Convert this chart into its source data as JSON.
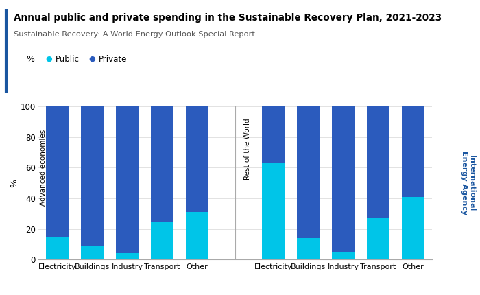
{
  "title": "Annual public and private spending in the Sustainable Recovery Plan, 2021-2023",
  "subtitle": "Sustainable Recovery: A World Energy Outlook Special Report",
  "ylabel": "%",
  "ylim": [
    0,
    100
  ],
  "color_public": "#00C5E8",
  "color_private": "#2B5BBD",
  "group1_label": "Advanced economies",
  "group2_label": "Rest of the World",
  "categories": [
    "Electricity",
    "Buildings",
    "Industry",
    "Transport",
    "Other"
  ],
  "public_group1": [
    15,
    9,
    4,
    25,
    31
  ],
  "private_group1": [
    85,
    91,
    96,
    75,
    69
  ],
  "public_group2": [
    63,
    14,
    5,
    27,
    41
  ],
  "private_group2": [
    37,
    86,
    95,
    73,
    59
  ],
  "iea_text": "International\nEnergy Agency",
  "title_bar_color": "#1A56A0",
  "iea_color": "#1A56A0",
  "grid_color": "#DDDDDD",
  "bar_width": 0.65
}
